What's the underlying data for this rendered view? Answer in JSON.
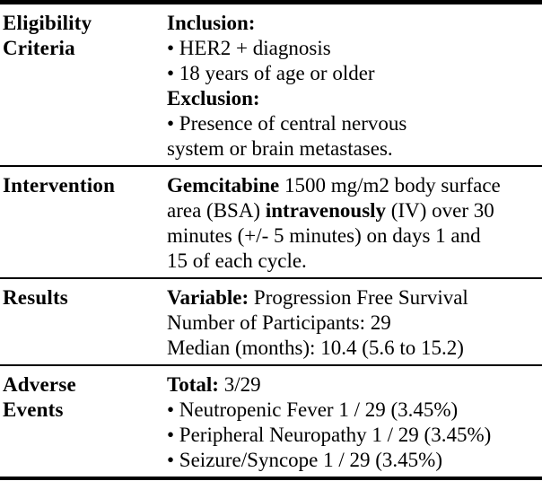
{
  "table": {
    "colors": {
      "text": "#000000",
      "background": "#ffffff",
      "rule": "#000000"
    },
    "rows": [
      {
        "label": "Eligibility Criteria",
        "label_lines": [
          "Eligibility",
          "Criteria"
        ],
        "lines": [
          [
            {
              "t": "Inclusion:",
              "b": true
            }
          ],
          [
            {
              "t": "• HER2 + diagnosis",
              "b": false
            }
          ],
          [
            {
              "t": "• 18 years of age or older",
              "b": false
            }
          ],
          [
            {
              "t": "Exclusion:",
              "b": true
            }
          ],
          [
            {
              "t": "• Presence of central nervous",
              "b": false
            }
          ],
          [
            {
              "t": "system or brain metastases.",
              "b": false
            }
          ]
        ]
      },
      {
        "label": "Intervention",
        "label_lines": [
          "Intervention"
        ],
        "lines": [
          [
            {
              "t": "Gemcitabine",
              "b": true
            },
            {
              "t": " 1500 mg/m2 body surface",
              "b": false
            }
          ],
          [
            {
              "t": "area (BSA) ",
              "b": false
            },
            {
              "t": "intravenously",
              "b": true
            },
            {
              "t": " (IV) over 30",
              "b": false
            }
          ],
          [
            {
              "t": "minutes (+/- 5 minutes) on days 1 and",
              "b": false
            }
          ],
          [
            {
              "t": "15 of each cycle.",
              "b": false
            }
          ]
        ]
      },
      {
        "label": "Results",
        "label_lines": [
          "Results"
        ],
        "lines": [
          [
            {
              "t": "Variable:",
              "b": true
            },
            {
              "t": " Progression Free Survival",
              "b": false
            }
          ],
          [
            {
              "t": "Number of Participants: 29",
              "b": false
            }
          ],
          [
            {
              "t": "Median (months): 10.4 (5.6 to 15.2)",
              "b": false
            }
          ]
        ]
      },
      {
        "label": "Adverse Events",
        "label_lines": [
          "Adverse",
          "Events"
        ],
        "lines": [
          [
            {
              "t": "Total:",
              "b": true
            },
            {
              "t": " 3/29",
              "b": false
            }
          ],
          [
            {
              "t": "• Neutropenic Fever 1 / 29 (3.45%)",
              "b": false
            }
          ],
          [
            {
              "t": "• Peripheral Neuropathy 1 / 29 (3.45%)",
              "b": false
            }
          ],
          [
            {
              "t": "• Seizure/Syncope 1 / 29 (3.45%)",
              "b": false
            }
          ]
        ]
      }
    ]
  }
}
